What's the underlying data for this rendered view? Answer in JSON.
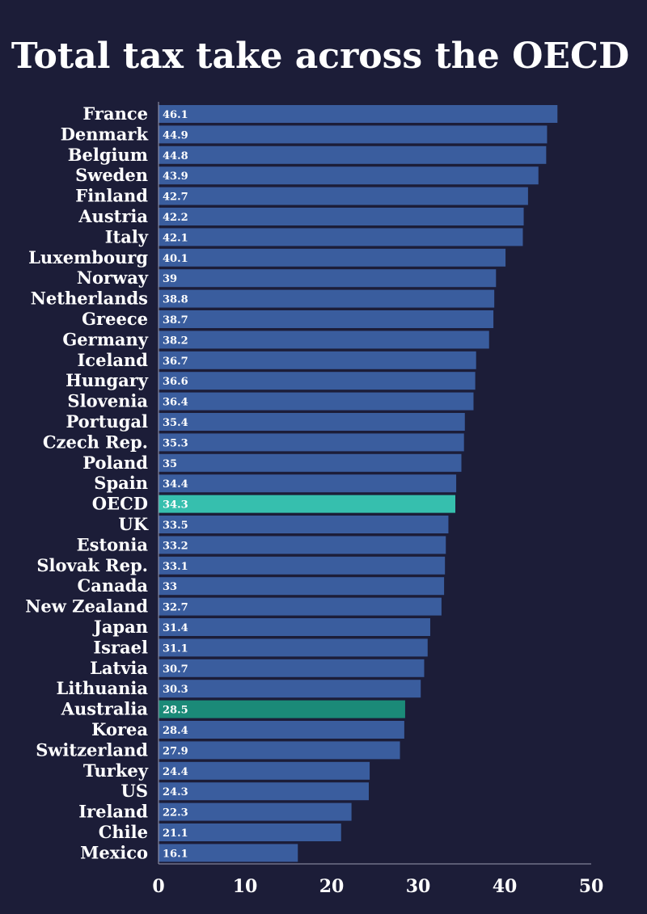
{
  "chart_data": {
    "type": "bar",
    "orientation": "horizontal",
    "title": "Total tax take across the OECD",
    "categories": [
      "France",
      "Denmark",
      "Belgium",
      "Sweden",
      "Finland",
      "Austria",
      "Italy",
      "Luxembourg",
      "Norway",
      "Netherlands",
      "Greece",
      "Germany",
      "Iceland",
      "Hungary",
      "Slovenia",
      "Portugal",
      "Czech Rep.",
      "Poland",
      "Spain",
      "OECD",
      "UK",
      "Estonia",
      "Slovak Rep.",
      "Canada",
      "New Zealand",
      "Japan",
      "Israel",
      "Latvia",
      "Lithuania",
      "Australia",
      "Korea",
      "Switzerland",
      "Turkey",
      "US",
      "Ireland",
      "Chile",
      "Mexico"
    ],
    "values": [
      46.1,
      44.9,
      44.8,
      43.9,
      42.7,
      42.2,
      42.1,
      40.1,
      39,
      38.8,
      38.7,
      38.2,
      36.7,
      36.6,
      36.4,
      35.4,
      35.3,
      35,
      34.4,
      34.3,
      33.5,
      33.2,
      33.1,
      33,
      32.7,
      31.4,
      31.1,
      30.7,
      30.3,
      28.5,
      28.4,
      27.9,
      24.4,
      24.3,
      22.3,
      21.1,
      16.1
    ],
    "value_labels": [
      "46.1",
      "44.9",
      "44.8",
      "43.9",
      "42.7",
      "42.2",
      "42.1",
      "40.1",
      "39",
      "38.8",
      "38.7",
      "38.2",
      "36.7",
      "36.6",
      "36.4",
      "35.4",
      "35.3",
      "35",
      "34.4",
      "34.3",
      "33.5",
      "33.2",
      "33.1",
      "33",
      "32.7",
      "31.4",
      "31.1",
      "30.7",
      "30.3",
      "28.5",
      "28.4",
      "27.9",
      "24.4",
      "24.3",
      "22.3",
      "21.1",
      "16.1"
    ],
    "xlim": [
      0,
      50
    ],
    "xticks": [
      "0",
      "10",
      "20",
      "30",
      "40",
      "50"
    ],
    "grid": false,
    "xlabel": "",
    "ylabel": "",
    "colors": {
      "background": "#1c1d38",
      "bar": "#3a5d9e",
      "highlight_oecd": "#36bfae",
      "highlight_australia": "#1b8a78",
      "axis": "#9a9cb0",
      "text": "#ffffff"
    },
    "highlights": {
      "OECD": "highlight_oecd",
      "Australia": "highlight_australia"
    }
  }
}
